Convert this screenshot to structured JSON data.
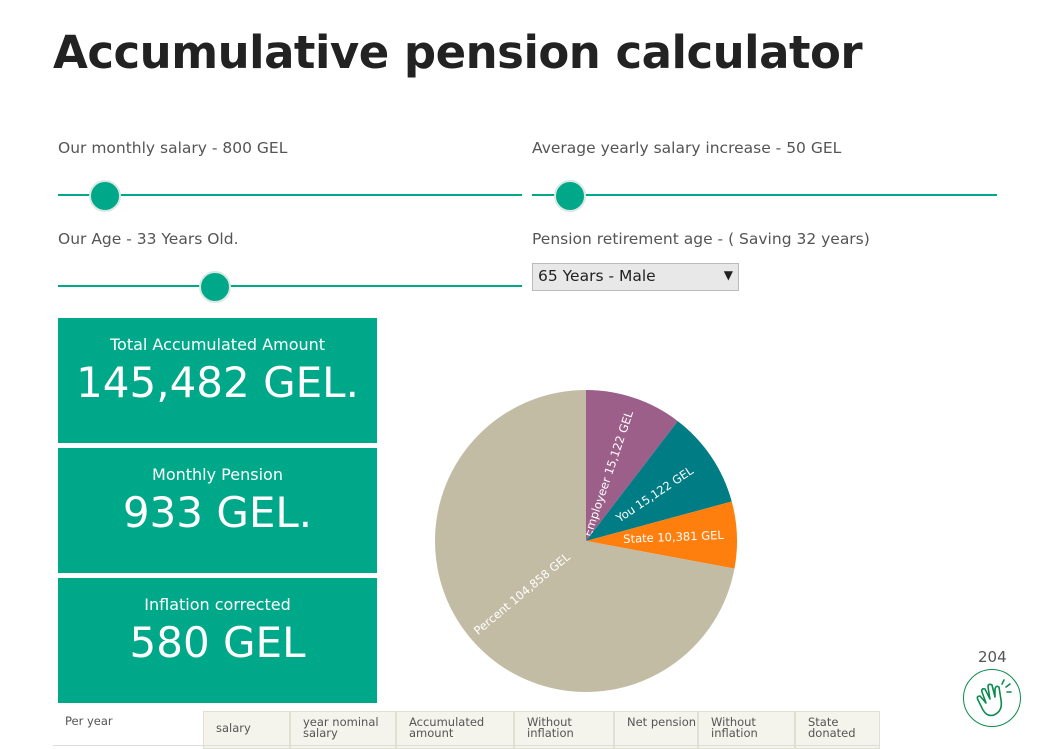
{
  "page": {
    "title": "Accumulative pension calculator"
  },
  "controls": {
    "salary_label": "Our monthly salary - 800 GEL",
    "increase_label": "Average yearly salary increase - 50 GEL",
    "age_label": "Our Age - 33 Years Old.",
    "retirement_label": "Pension retirement age - ( Saving 32 years)",
    "salary_slider_level": 0.1,
    "increase_slider_level": 0.08,
    "age_slider_level": 0.34,
    "retirement_select_value": "65 Years - Male"
  },
  "cards": {
    "total_label": "Total Accumulated Amount",
    "total_value": "145,482 GEL.",
    "monthly_label": "Monthly Pension",
    "monthly_value": "933 GEL.",
    "inflation_label": "Inflation corrected",
    "inflation_value": "580 GEL"
  },
  "chart_data": {
    "type": "pie",
    "slices": [
      {
        "label": "Employeer 15,122 GEL",
        "value": 15122,
        "color": "#9b5f8a"
      },
      {
        "label": "You 15,122 GEL",
        "value": 15122,
        "color": "#007c85"
      },
      {
        "label": "State 10,381 GEL",
        "value": 10381,
        "color": "#ff7f0e"
      },
      {
        "label": "Percent 104,858 GEL",
        "value": 104858,
        "color": "#c3bca5"
      }
    ]
  },
  "table": {
    "headers": [
      "Per year",
      "salary",
      "year nominal salary",
      "Accumulated amount",
      "Without inflation",
      "Net pension",
      "Without inflation",
      "State donated"
    ]
  },
  "badge": {
    "count": "204",
    "icon": "clap-icon"
  },
  "colors": {
    "accent": "#00a88a"
  }
}
